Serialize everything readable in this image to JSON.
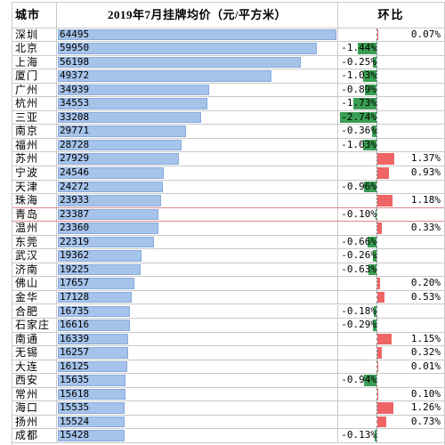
{
  "chart_data": {
    "type": "table",
    "category_label": "城市",
    "categories": [
      "深圳",
      "北京",
      "上海",
      "厦门",
      "广州",
      "杭州",
      "三亚",
      "南京",
      "福州",
      "苏州",
      "宁波",
      "天津",
      "珠海",
      "青岛",
      "温州",
      "东莞",
      "武汉",
      "济南",
      "佛山",
      "金华",
      "合肥",
      "石家庄",
      "南通",
      "无锡",
      "大连",
      "西安",
      "常州",
      "海口",
      "扬州",
      "成都"
    ],
    "series": [
      {
        "name": "2019年7月挂牌均价（元/平方米）",
        "values": [
          64495,
          59950,
          56198,
          49372,
          34939,
          34553,
          33208,
          29771,
          28728,
          27929,
          24546,
          24272,
          23933,
          23387,
          23360,
          22319,
          19362,
          19225,
          17657,
          17128,
          16735,
          16616,
          16339,
          16257,
          16125,
          15635,
          15618,
          15535,
          15524,
          15428
        ]
      },
      {
        "name": "环比",
        "unit": "%",
        "values": [
          0.07,
          -1.44,
          -0.25,
          -1.03,
          -0.89,
          -1.73,
          -2.74,
          -0.36,
          -1.03,
          1.37,
          0.93,
          -0.96,
          1.18,
          -0.1,
          0.33,
          -0.66,
          -0.26,
          -0.63,
          0.2,
          0.53,
          -0.18,
          -0.29,
          1.15,
          0.32,
          0.01,
          -0.94,
          0.1,
          1.26,
          0.73,
          -0.13
        ]
      }
    ]
  },
  "colors": {
    "price_bar": "#a6c3ea",
    "price_bar_edge": "#86aadc",
    "negative_bar": "#3a9e54",
    "positive_bar": "#ef6464",
    "grid": "#c9c9c9",
    "highlight": "#e08a8a"
  }
}
